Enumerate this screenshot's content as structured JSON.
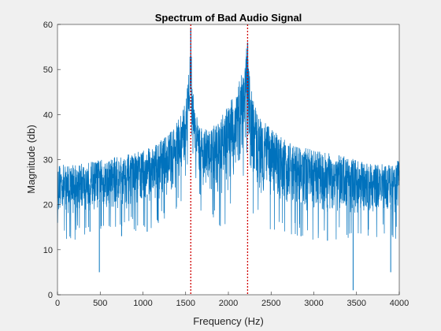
{
  "chart_data": {
    "type": "line",
    "title": "Spectrum of Bad Audio Signal",
    "xlabel": "Frequency (Hz)",
    "ylabel": "Magnitude (db)",
    "xlim": [
      0,
      4000
    ],
    "ylim": [
      0,
      60
    ],
    "xticks": [
      "0",
      "500",
      "1000",
      "1500",
      "2000",
      "2500",
      "3000",
      "3500",
      "4000"
    ],
    "yticks": [
      "0",
      "10",
      "20",
      "30",
      "40",
      "50",
      "60"
    ],
    "grid": false,
    "series": [
      {
        "name": "",
        "color": "#0072bd",
        "envelope": {
          "frequency": [
            0,
            200,
            500,
            800,
            1000,
            1200,
            1350,
            1450,
            1500,
            1530,
            1550,
            1560,
            1580,
            1620,
            1700,
            1800,
            1900,
            2000,
            2100,
            2150,
            2200,
            2220,
            2240,
            2280,
            2350,
            2500,
            2700,
            3000,
            3300,
            3500,
            3700,
            3900,
            4000
          ],
          "upper": [
            29,
            29,
            30,
            31,
            32,
            34,
            37,
            40,
            43,
            48,
            53,
            59,
            46,
            40,
            37,
            37,
            39,
            42,
            46,
            49,
            52,
            58,
            50,
            44,
            40,
            37,
            34,
            32,
            31,
            30,
            29,
            29,
            30
          ],
          "lower": [
            16,
            16,
            17,
            17,
            18,
            19,
            20,
            23,
            27,
            33,
            38,
            40,
            33,
            26,
            21,
            19,
            19,
            20,
            22,
            25,
            28,
            37,
            27,
            22,
            20,
            18,
            17,
            16,
            16,
            16,
            16,
            16,
            16
          ]
        },
        "dips": [
          {
            "frequency": 380,
            "value": 14
          },
          {
            "frequency": 490,
            "value": 5
          },
          {
            "frequency": 750,
            "value": 13
          },
          {
            "frequency": 1050,
            "value": 14
          },
          {
            "frequency": 2850,
            "value": 13
          },
          {
            "frequency": 3160,
            "value": 12
          },
          {
            "frequency": 3460,
            "value": 1
          },
          {
            "frequency": 3900,
            "value": 5
          }
        ]
      }
    ],
    "markers": [
      {
        "type": "vertical-dotted-line",
        "frequency": 1560,
        "color": "#d00000"
      },
      {
        "type": "vertical-dotted-line",
        "frequency": 2225,
        "color": "#d00000"
      }
    ]
  }
}
